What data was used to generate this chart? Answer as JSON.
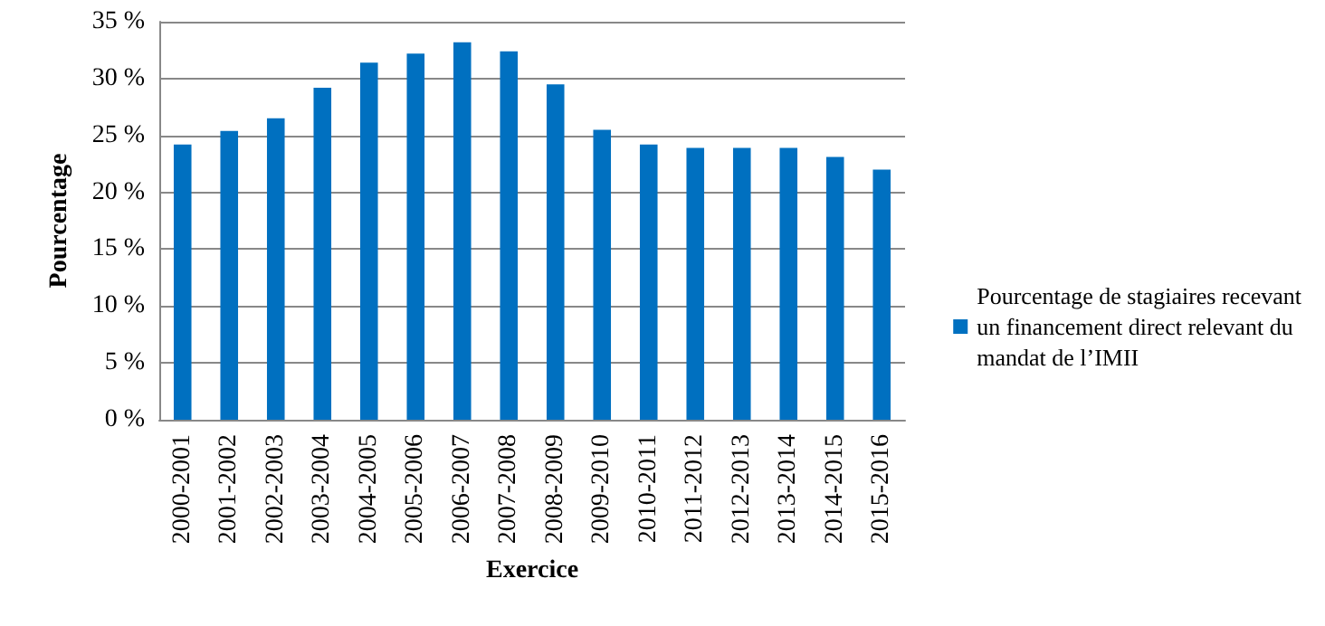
{
  "chart_data": {
    "type": "bar",
    "xlabel": "Exercice",
    "ylabel": "Pourcentage",
    "categories": [
      "2000-2001",
      "2001-2002",
      "2002-2003",
      "2003-2004",
      "2004-2005",
      "2005-2006",
      "2006-2007",
      "2007-2008",
      "2008-2009",
      "2009-2010",
      "2010-2011",
      "2011-2012",
      "2012-2013",
      "2013-2014",
      "2014-2015",
      "2015-2016"
    ],
    "series": [
      {
        "name": "Pourcentage de stagiaires recevant un financement direct relevant du mandat de l’IMII",
        "color": "#0070c0",
        "values": [
          24.2,
          25.4,
          26.5,
          29.2,
          31.4,
          32.2,
          33.2,
          32.4,
          29.5,
          25.5,
          24.2,
          23.9,
          23.9,
          23.9,
          23.1,
          22.0
        ]
      }
    ],
    "ylim": [
      0,
      35
    ],
    "yticks": [
      {
        "value": 0,
        "label": "0 %"
      },
      {
        "value": 5,
        "label": "5 %"
      },
      {
        "value": 10,
        "label": "10 %"
      },
      {
        "value": 15,
        "label": "15 %"
      },
      {
        "value": 20,
        "label": "20 %"
      },
      {
        "value": 25,
        "label": "25 %"
      },
      {
        "value": 30,
        "label": "30 %"
      },
      {
        "value": 35,
        "label": "35 %"
      }
    ],
    "grid": "y",
    "legend": "right"
  }
}
